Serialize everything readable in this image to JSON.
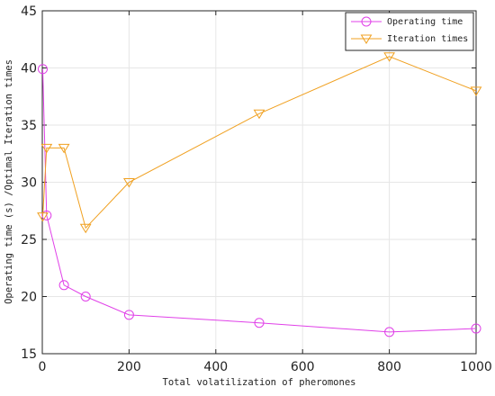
{
  "chart_data": {
    "type": "line",
    "xlabel": "Total volatilization of pheromones",
    "ylabel": "Operating time (s) /Optimal Iteration times",
    "xlim": [
      0,
      1000
    ],
    "ylim": [
      15,
      45
    ],
    "xticks": [
      0,
      200,
      400,
      600,
      800,
      1000
    ],
    "yticks": [
      15,
      20,
      25,
      30,
      35,
      40,
      45
    ],
    "grid": true,
    "legend_position": "top-right",
    "series": [
      {
        "name": "Operating time",
        "color": "#e040e8",
        "marker": "circle",
        "x": [
          1,
          10,
          50,
          100,
          200,
          500,
          800,
          1000
        ],
        "y": [
          39.9,
          27.1,
          21.0,
          20.0,
          18.4,
          17.7,
          16.9,
          17.2
        ]
      },
      {
        "name": "Iteration times",
        "color": "#f0a020",
        "marker": "triangle-down",
        "x": [
          1,
          10,
          50,
          100,
          200,
          500,
          800,
          1000
        ],
        "y": [
          27,
          33,
          33,
          26,
          30,
          36,
          41,
          38
        ]
      }
    ]
  }
}
